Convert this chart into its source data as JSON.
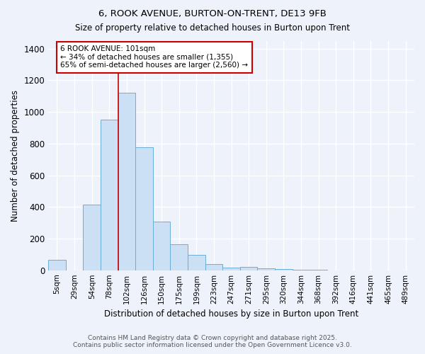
{
  "title1": "6, ROOK AVENUE, BURTON-ON-TRENT, DE13 9FB",
  "title2": "Size of property relative to detached houses in Burton upon Trent",
  "xlabel": "Distribution of detached houses by size in Burton upon Trent",
  "ylabel": "Number of detached properties",
  "categories": [
    "5sqm",
    "29sqm",
    "54sqm",
    "78sqm",
    "102sqm",
    "126sqm",
    "150sqm",
    "175sqm",
    "199sqm",
    "223sqm",
    "247sqm",
    "271sqm",
    "295sqm",
    "320sqm",
    "344sqm",
    "368sqm",
    "392sqm",
    "416sqm",
    "441sqm",
    "465sqm",
    "489sqm"
  ],
  "bar_heights": [
    65,
    0,
    415,
    950,
    1120,
    775,
    305,
    165,
    97,
    37,
    15,
    20,
    12,
    6,
    3,
    2,
    0,
    0,
    0,
    0,
    0
  ],
  "bar_color": "#cce0f5",
  "bar_edge_color": "#6aaed6",
  "vline_x_index": 4,
  "vline_color": "#cc0000",
  "annotation_text": "6 ROOK AVENUE: 101sqm\n← 34% of detached houses are smaller (1,355)\n65% of semi-detached houses are larger (2,560) →",
  "annotation_box_color": "#ffffff",
  "annotation_box_edge": "#cc0000",
  "ylim": [
    0,
    1450
  ],
  "yticks": [
    0,
    200,
    400,
    600,
    800,
    1000,
    1200,
    1400
  ],
  "background_color": "#eef3fb",
  "grid_color": "#ffffff",
  "footer_line1": "Contains HM Land Registry data © Crown copyright and database right 2025.",
  "footer_line2": "Contains public sector information licensed under the Open Government Licence v3.0."
}
